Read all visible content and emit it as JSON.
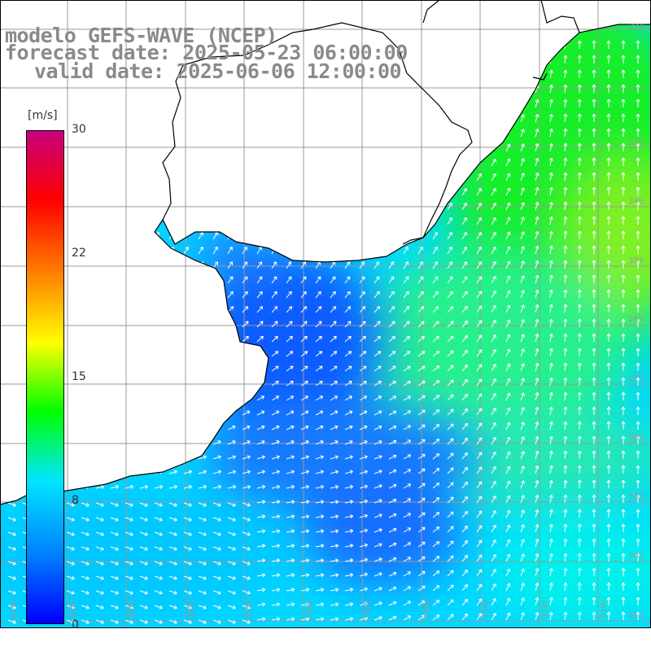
{
  "title": {
    "line1": "modelo GEFS-WAVE (NCEP)",
    "line2": "forecast date: 2025-05-23 06:00:00",
    "line3": "valid date: 2025-06-06 12:00:00"
  },
  "colorbar": {
    "unit": "[m/s]",
    "ticks": [
      "30",
      "22",
      "15",
      "8",
      "0"
    ],
    "tick_values": [
      30,
      22,
      15,
      8,
      0
    ],
    "colors": [
      "#0000ff",
      "#0080ff",
      "#00e5ff",
      "#00ff00",
      "#ffff00",
      "#ff8000",
      "#ff0000",
      "#c8007f"
    ]
  },
  "map": {
    "lat_labels": [
      "31S",
      "33S",
      "34S",
      "35S",
      "36S",
      "37S",
      "38S",
      "39S",
      "40S",
      "41S"
    ],
    "lon_labels": [
      "61W",
      "60W",
      "59W",
      "58W",
      "57W",
      "56W",
      "55W",
      "54W",
      "53W",
      "52W",
      "51W"
    ],
    "land_color": "#ffffff",
    "grid_color": "#999999"
  }
}
